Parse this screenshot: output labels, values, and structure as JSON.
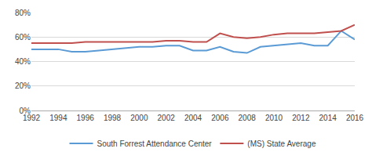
{
  "chart_data": {
    "type": "line",
    "x": [
      1992,
      1993,
      1994,
      1995,
      1996,
      1997,
      1998,
      1999,
      2000,
      2001,
      2002,
      2003,
      2004,
      2005,
      2006,
      2007,
      2008,
      2009,
      2010,
      2011,
      2012,
      2013,
      2014,
      2015,
      2016
    ],
    "series": [
      {
        "name": "South Forrest Attendance Center",
        "color": "#5b9bd5",
        "values": [
          50,
          50,
          50,
          48,
          48,
          49,
          50,
          51,
          52,
          52,
          53,
          53,
          49,
          49,
          52,
          48,
          47,
          52,
          53,
          54,
          55,
          53,
          53,
          65,
          58
        ]
      },
      {
        "name": "(MS) State Average",
        "color": "#c0504d",
        "values": [
          55,
          55,
          55,
          55,
          56,
          56,
          56,
          56,
          56,
          56,
          57,
          57,
          56,
          56,
          63,
          60,
          59,
          60,
          62,
          63,
          63,
          63,
          64,
          65,
          70
        ]
      }
    ],
    "xlim": [
      1992,
      2016
    ],
    "xticks": [
      1992,
      1994,
      1996,
      1998,
      2000,
      2002,
      2004,
      2006,
      2008,
      2010,
      2012,
      2014,
      2016
    ],
    "ylim": [
      0,
      80
    ],
    "yticks": [
      {
        "value": 0,
        "label": "0%"
      },
      {
        "value": 20,
        "label": "20%"
      },
      {
        "value": 40,
        "label": "40%"
      },
      {
        "value": 60,
        "label": "60%"
      },
      {
        "value": 80,
        "label": "80%"
      }
    ],
    "grid": true,
    "legend": "bottom"
  }
}
